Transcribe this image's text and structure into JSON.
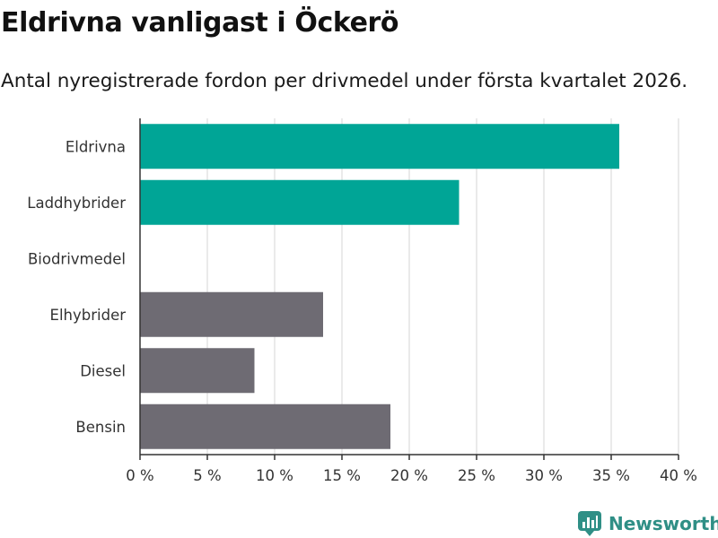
{
  "header": {
    "title": "Eldrivna vanligast i Öckerö",
    "subtitle": "Antal nyregistrerade fordon per drivmedel under första kvartalet 2026."
  },
  "chart_data": {
    "type": "bar",
    "orientation": "horizontal",
    "title": "Eldrivna vanligast i Öckerö",
    "subtitle": "Antal nyregistrerade fordon per drivmedel under första kvartalet 2026.",
    "categories": [
      "Eldrivna",
      "Laddhybrider",
      "Biodrivmedel",
      "Elhybrider",
      "Diesel",
      "Bensin"
    ],
    "values": [
      35.6,
      23.7,
      0,
      13.6,
      8.5,
      18.6
    ],
    "bar_colors": [
      "#00a596",
      "#00a596",
      "#00a596",
      "#6e6b73",
      "#6e6b73",
      "#6e6b73"
    ],
    "xlim": [
      0,
      40
    ],
    "xticks": [
      0,
      5,
      10,
      15,
      20,
      25,
      30,
      35,
      40
    ],
    "xtick_labels": [
      "0 %",
      "5 %",
      "10 %",
      "15 %",
      "20 %",
      "25 %",
      "30 %",
      "35 %",
      "40 %"
    ],
    "xlabel": "",
    "ylabel": "",
    "grid": true,
    "legend": "none"
  },
  "brand": {
    "name": "Newsworthy",
    "icon": "bar-chart-logo-icon",
    "color": "#2f8f86"
  },
  "colors": {
    "grid": "#dddddd",
    "axis": "#333333",
    "text": "#333333"
  }
}
